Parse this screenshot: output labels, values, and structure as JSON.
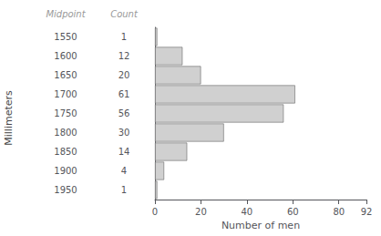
{
  "chart_data": {
    "type": "bar",
    "orientation": "horizontal",
    "xlabel": "Number of men",
    "ylabel": "Millimeters",
    "annotations": [
      "Midpoint",
      "Count"
    ],
    "categories": [
      "1550",
      "1600",
      "1650",
      "1700",
      "1750",
      "1800",
      "1850",
      "1900",
      "1950"
    ],
    "values": [
      1,
      12,
      20,
      61,
      56,
      30,
      14,
      4,
      1
    ],
    "color": "#d0d0d0",
    "xlim": [
      0,
      92
    ],
    "xticks": [
      0,
      20,
      40,
      60,
      80
    ],
    "data_labels": true,
    "grid": false
  }
}
